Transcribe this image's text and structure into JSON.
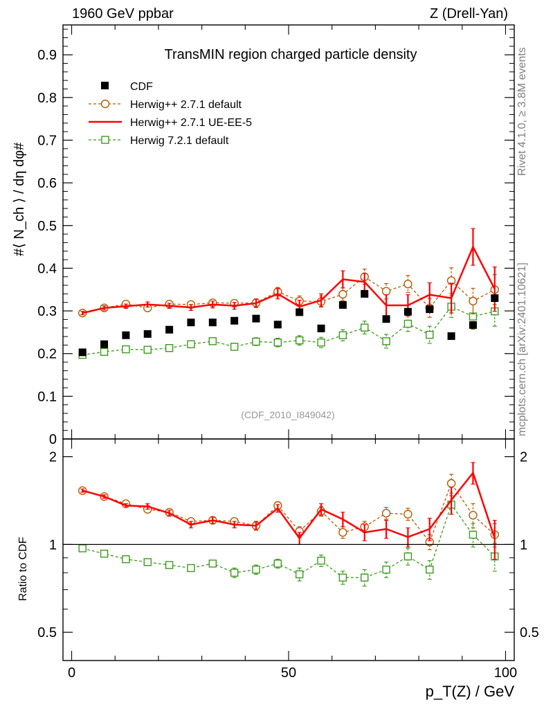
{
  "header": {
    "left": "1960 GeV ppbar",
    "right": "Z (Drell-Yan)"
  },
  "side_labels": {
    "rivet": "Rivet 4.1.0, ≥ 3.8M events",
    "mcplots": "mcplots.cern.ch [arXiv:2401.10621]"
  },
  "colors": {
    "cdf": "#000000",
    "herwig_default": "#b35900",
    "herwig_ueee5": "#ff0000",
    "herwig72": "#3a9a1c",
    "analysis_label": "#999999"
  },
  "chart_data": [
    {
      "type": "scatter",
      "panel": "main",
      "title": "TransMIN region charged particle density",
      "analysis_label": "(CDF_2010_I849042)",
      "xlabel": "p_T(Z) / GeV",
      "ylabel": "⟨ N_ch ⟩ / dη dφ",
      "xlim": [
        -2,
        102
      ],
      "ylim": [
        0,
        0.97
      ],
      "yticks": [
        "0",
        "0.1",
        "0.2",
        "0.3",
        "0.4",
        "0.5",
        "0.6",
        "0.7",
        "0.8",
        "0.9"
      ],
      "xticks": [
        "0",
        "50",
        "100"
      ],
      "legend_position": "top-left",
      "x": [
        2.5,
        7.5,
        12.5,
        17.5,
        22.5,
        27.5,
        32.5,
        37.5,
        42.5,
        47.5,
        52.5,
        57.5,
        62.5,
        67.5,
        72.5,
        77.5,
        82.5,
        87.5,
        92.5,
        97.5
      ],
      "series": [
        {
          "name": "CDF",
          "style": "filled-square",
          "values": [
            0.203,
            0.222,
            0.243,
            0.246,
            0.256,
            0.273,
            0.273,
            0.277,
            0.282,
            0.268,
            0.297,
            0.259,
            0.314,
            0.34,
            0.281,
            0.298,
            0.304,
            0.241,
            0.267,
            0.33
          ]
        },
        {
          "name": "Herwig++ 2.7.1 default",
          "style": "dashed-open-circle",
          "values": [
            0.295,
            0.307,
            0.316,
            0.307,
            0.316,
            0.315,
            0.319,
            0.318,
            0.319,
            0.345,
            0.323,
            0.322,
            0.339,
            0.38,
            0.346,
            0.363,
            0.307,
            0.371,
            0.323,
            0.35
          ],
          "errors": [
            0.004,
            0.005,
            0.005,
            0.006,
            0.006,
            0.007,
            0.007,
            0.008,
            0.009,
            0.01,
            0.012,
            0.013,
            0.015,
            0.018,
            0.018,
            0.02,
            0.022,
            0.03,
            0.03,
            0.035
          ]
        },
        {
          "name": "Herwig++ 2.7.1 UE-EE-5",
          "style": "solid-line",
          "values": [
            0.295,
            0.307,
            0.311,
            0.315,
            0.312,
            0.308,
            0.315,
            0.312,
            0.318,
            0.34,
            0.31,
            0.325,
            0.374,
            0.368,
            0.313,
            0.313,
            0.338,
            0.33,
            0.45,
            0.351
          ],
          "errors": [
            0.004,
            0.005,
            0.005,
            0.006,
            0.006,
            0.007,
            0.008,
            0.008,
            0.01,
            0.012,
            0.015,
            0.015,
            0.02,
            0.02,
            0.025,
            0.025,
            0.028,
            0.035,
            0.043,
            0.052
          ]
        },
        {
          "name": "Herwig 7.2.1 default",
          "style": "dashed-open-square",
          "values": [
            0.197,
            0.204,
            0.21,
            0.209,
            0.213,
            0.222,
            0.229,
            0.216,
            0.228,
            0.226,
            0.231,
            0.226,
            0.243,
            0.261,
            0.229,
            0.27,
            0.244,
            0.31,
            0.287,
            0.299
          ],
          "errors": [
            0.004,
            0.005,
            0.005,
            0.006,
            0.006,
            0.007,
            0.007,
            0.008,
            0.009,
            0.01,
            0.011,
            0.012,
            0.013,
            0.015,
            0.016,
            0.018,
            0.02,
            0.025,
            0.03,
            0.035
          ]
        }
      ]
    },
    {
      "type": "line",
      "panel": "ratio",
      "ylabel": "Ratio to CDF",
      "yscale": "log",
      "xlim": [
        -2,
        102
      ],
      "ylim": [
        0.4,
        2.3
      ],
      "yticks": [
        "0.5",
        "1",
        "2"
      ],
      "reference": 1,
      "x": [
        2.5,
        7.5,
        12.5,
        17.5,
        22.5,
        27.5,
        32.5,
        37.5,
        42.5,
        47.5,
        52.5,
        57.5,
        62.5,
        67.5,
        72.5,
        77.5,
        82.5,
        87.5,
        92.5,
        97.5
      ],
      "series": [
        {
          "name": "Herwig++ 2.7.1 default",
          "values": [
            1.53,
            1.46,
            1.38,
            1.32,
            1.29,
            1.2,
            1.21,
            1.2,
            1.16,
            1.36,
            1.11,
            1.3,
            1.1,
            1.15,
            1.28,
            1.27,
            1.02,
            1.62,
            1.26,
            1.08
          ],
          "errors": [
            0.02,
            0.02,
            0.02,
            0.02,
            0.02,
            0.02,
            0.02,
            0.03,
            0.03,
            0.04,
            0.04,
            0.05,
            0.05,
            0.05,
            0.06,
            0.06,
            0.06,
            0.12,
            0.12,
            0.1
          ]
        },
        {
          "name": "Herwig++ 2.7.1 UE-EE-5",
          "values": [
            1.53,
            1.46,
            1.36,
            1.35,
            1.28,
            1.17,
            1.21,
            1.17,
            1.16,
            1.33,
            1.05,
            1.32,
            1.22,
            1.1,
            1.13,
            1.06,
            1.13,
            1.42,
            1.76,
            1.05
          ],
          "errors": [
            0.02,
            0.02,
            0.02,
            0.03,
            0.03,
            0.03,
            0.03,
            0.03,
            0.04,
            0.04,
            0.05,
            0.06,
            0.07,
            0.07,
            0.08,
            0.08,
            0.1,
            0.15,
            0.15,
            0.16
          ]
        },
        {
          "name": "Herwig 7.2.1 default",
          "values": [
            0.97,
            0.93,
            0.89,
            0.87,
            0.85,
            0.83,
            0.86,
            0.8,
            0.82,
            0.86,
            0.79,
            0.88,
            0.77,
            0.77,
            0.82,
            0.91,
            0.82,
            1.37,
            1.08,
            0.91
          ],
          "errors": [
            0.02,
            0.02,
            0.02,
            0.02,
            0.02,
            0.02,
            0.02,
            0.03,
            0.03,
            0.03,
            0.04,
            0.04,
            0.04,
            0.05,
            0.05,
            0.06,
            0.06,
            0.1,
            0.1,
            0.1
          ]
        }
      ]
    }
  ]
}
